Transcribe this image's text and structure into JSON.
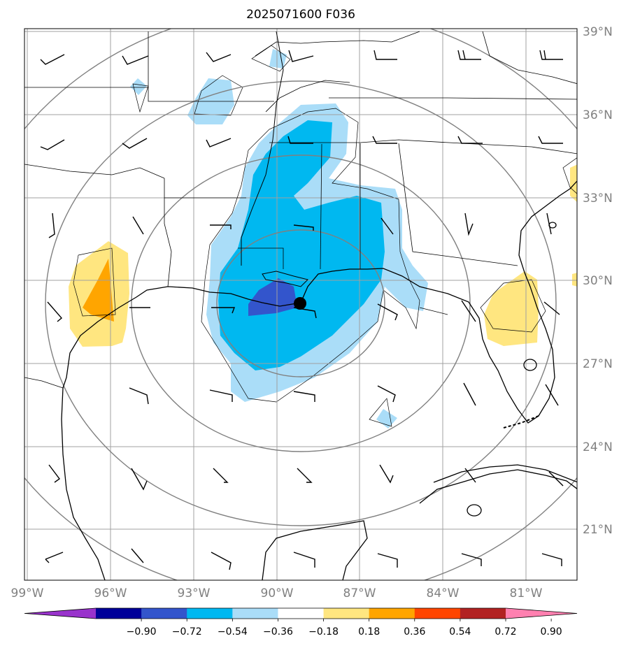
{
  "title": "2025071600 F036",
  "lat_labels": [
    "39°N",
    "36°N",
    "33°N",
    "30°N",
    "27°N",
    "24°N",
    "21°N"
  ],
  "lon_labels": [
    "99°W",
    "96°W",
    "93°W",
    "90°W",
    "87°W",
    "84°W",
    "81°W"
  ],
  "colorbar": {
    "tick_labels": [
      "−0.90",
      "−0.72",
      "−0.54",
      "−0.36",
      "−0.18",
      "0.18",
      "0.36",
      "0.54",
      "0.72",
      "0.90"
    ],
    "colors": [
      "#9933cc",
      "#000099",
      "#3355cc",
      "#00b8f0",
      "#aaddf8",
      "#ffffff",
      "#ffe680",
      "#ffa500",
      "#ff4500",
      "#b22222",
      "#ff80b0"
    ]
  },
  "colors": {
    "grid": "#a0a0a0",
    "range_rings": "#808080",
    "coast": "#000000",
    "storm_center": "#000000",
    "axis_labels": "#808080"
  },
  "storm_center": {
    "lat": 29.1,
    "lon": -89.1
  },
  "range_rings_km": [
    150,
    300,
    450,
    600,
    750
  ]
}
